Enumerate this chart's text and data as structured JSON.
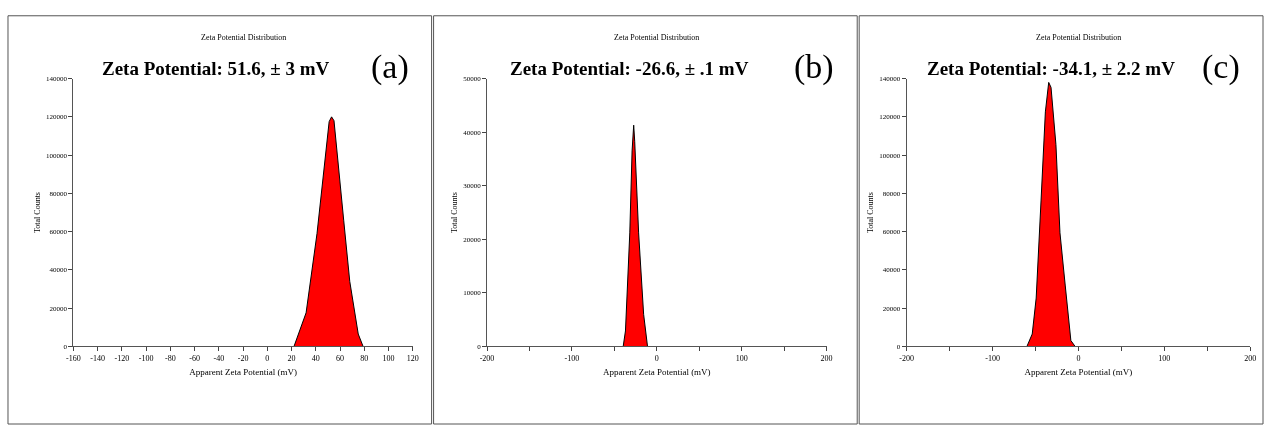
{
  "chart_data": [
    {
      "type": "area",
      "title": "Zeta Potential Distribution",
      "subtitle": "Zeta Potential: 51.6, ± 3 mV",
      "annotations": [
        "(a)"
      ],
      "xlabel": "Apparent Zeta Potential (mV)",
      "ylabel": "Total Counts",
      "x": [
        22,
        32,
        41,
        51,
        53,
        55,
        63,
        68,
        75,
        79
      ],
      "series": [
        {
          "color": "#ff0000",
          "values": [
            0,
            17600,
            59000,
            117500,
            120000,
            118000,
            66000,
            34000,
            6500,
            0
          ]
        }
      ],
      "xlim": [
        -160,
        120
      ],
      "xticks": [
        -160,
        -140,
        -120,
        -100,
        -80,
        -60,
        -40,
        -20,
        0,
        20,
        40,
        60,
        80,
        100,
        120
      ],
      "ylim": [
        0,
        140000
      ],
      "yticks": [
        0,
        20000,
        40000,
        60000,
        80000,
        100000,
        120000,
        140000
      ]
    },
    {
      "type": "area",
      "title": "Zeta Potential Distribution",
      "subtitle": "Zeta Potential: -26.6, ± .1 mV",
      "annotations": [
        "(b)"
      ],
      "xlabel": "Apparent Zeta Potential (mV)",
      "ylabel": "Total Counts",
      "x": [
        -39.6,
        -36.9,
        -31.8,
        -29.1,
        -27.2,
        -26,
        -21.4,
        -15.5,
        -10.9
      ],
      "series": [
        {
          "color": "#ff0000",
          "values": [
            0,
            2900,
            21200,
            36500,
            41300,
            38300,
            21200,
            6000,
            0
          ]
        }
      ],
      "xlim": [
        -200,
        200
      ],
      "xticks": [
        -200,
        {
          "value": -150,
          "label": null
        },
        -100,
        {
          "value": -50,
          "label": null
        },
        0,
        {
          "value": 50,
          "label": null
        },
        100,
        {
          "value": 150,
          "label": null
        },
        200
      ],
      "ylim": [
        0,
        50000
      ],
      "yticks": [
        0,
        10000,
        20000,
        30000,
        40000,
        50000
      ]
    },
    {
      "type": "area",
      "title": "Zeta Potential Distribution",
      "subtitle": "Zeta Potential: -34.1, ± 2.2 mV",
      "annotations": [
        "(c)"
      ],
      "xlabel": "Apparent Zeta Potential (mV)",
      "ylabel": "Total Counts",
      "x": [
        -60,
        -53.8,
        -49.2,
        -43.5,
        -38.5,
        -34.6,
        -31.9,
        -26.2,
        -21.5,
        -15.4,
        -8.8,
        -3.8
      ],
      "series": [
        {
          "color": "#ff0000",
          "values": [
            0,
            6500,
            25300,
            76500,
            122600,
            138000,
            135400,
            105500,
            59400,
            32100,
            3100,
            0
          ]
        }
      ],
      "xlim": [
        -200,
        200
      ],
      "xticks": [
        -200,
        {
          "value": -150,
          "label": null
        },
        -100,
        {
          "value": -50,
          "label": null
        },
        0,
        {
          "value": 50,
          "label": null
        },
        100,
        {
          "value": 150,
          "label": null
        },
        200
      ],
      "ylim": [
        0,
        140000
      ],
      "yticks": [
        0,
        20000,
        40000,
        60000,
        80000,
        100000,
        120000,
        140000
      ]
    }
  ]
}
